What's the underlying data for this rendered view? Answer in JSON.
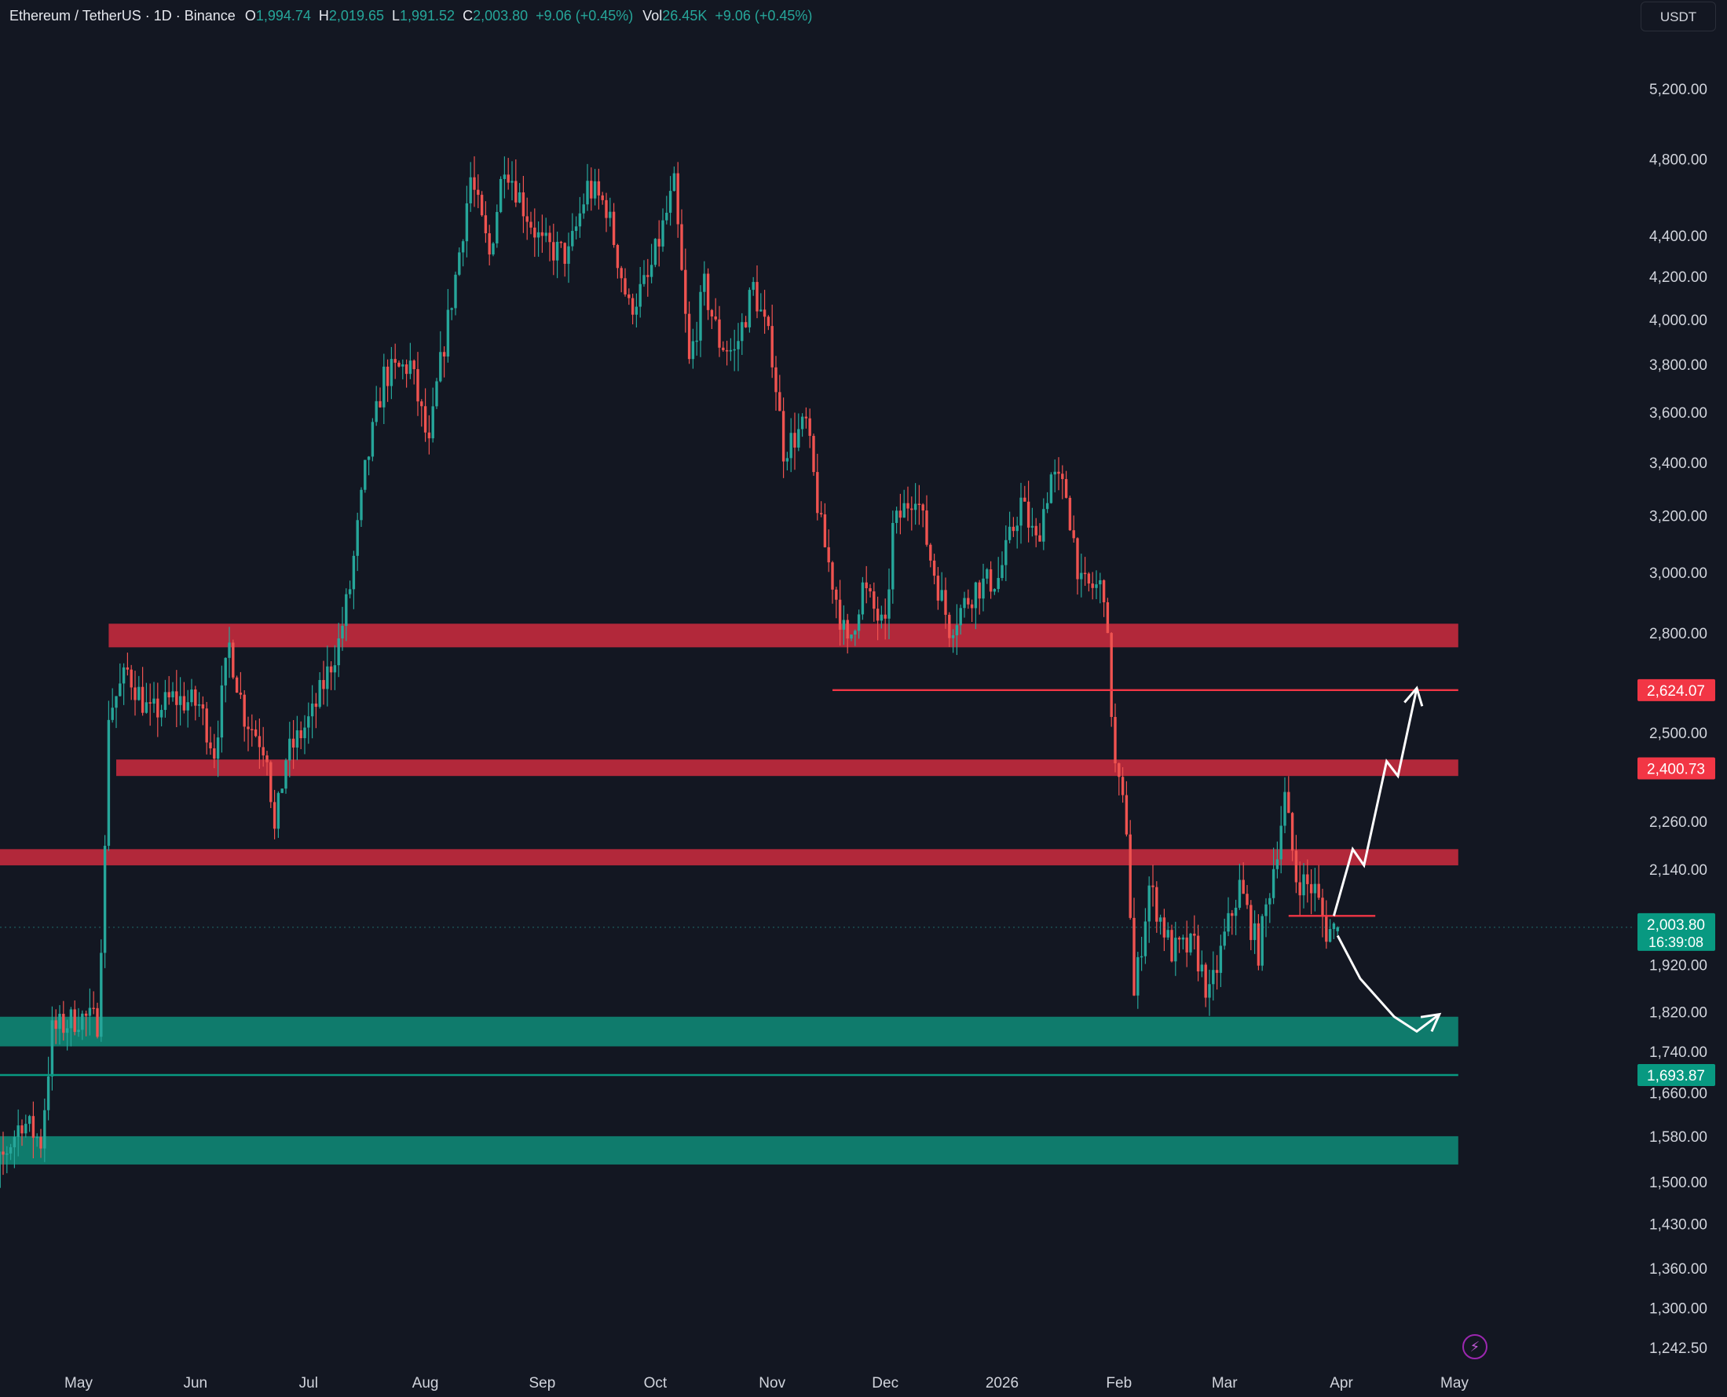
{
  "header": {
    "symbol": "Ethereum / TetherUS · 1D · Binance",
    "open_label": "O",
    "open_value": "1,994.74",
    "high_label": "H",
    "high_value": "2,019.65",
    "low_label": "L",
    "low_value": "1,991.52",
    "close_label": "C",
    "close_value": "2,003.80",
    "change": "+9.06 (+0.45%)",
    "vol_label": "Vol",
    "vol_value": "26.45K",
    "vol_change": "+9.06 (+0.45%)"
  },
  "currency_button": "USDT",
  "colors": {
    "background": "#131722",
    "up": "#26a69a",
    "down": "#ef5350",
    "resistance": "#b2283a",
    "support": "#0f7b6c",
    "arrow": "#ffffff",
    "text": "#d1d4dc"
  },
  "chart_data": {
    "type": "candlestick",
    "title": "Ethereum / TetherUS · 1D · Binance",
    "scale": "log",
    "x_ticks": [
      "May",
      "Jun",
      "Jul",
      "Aug",
      "Sep",
      "Oct",
      "Nov",
      "Dec",
      "2026",
      "Feb",
      "Mar",
      "Apr",
      "May"
    ],
    "y_ticks": [
      "5,200.00",
      "4,800.00",
      "4,400.00",
      "4,200.00",
      "4,000.00",
      "3,800.00",
      "3,600.00",
      "3,400.00",
      "3,200.00",
      "3,000.00",
      "2,800.00",
      "2,500.00",
      "2,260.00",
      "2,140.00",
      "1,920.00",
      "1,820.00",
      "1,740.00",
      "1,660.00",
      "1,580.00",
      "1,500.00",
      "1,430.00",
      "1,360.00",
      "1,300.00",
      "1,242.50"
    ],
    "ylim": [
      1200,
      5600
    ],
    "last_price": {
      "value": "2,003.80",
      "countdown": "16:39:08"
    },
    "price_labels": [
      {
        "value": "2,624.07",
        "color": "#f23645"
      },
      {
        "value": "2,400.73",
        "color": "#f23645"
      },
      {
        "value": "1,693.87",
        "color": "#089981"
      }
    ],
    "zones": [
      {
        "type": "resistance",
        "low": 2755,
        "high": 2830,
        "from": "2025-05-09",
        "to": "2026-05-02"
      },
      {
        "type": "resistance",
        "low": 2380,
        "high": 2425,
        "from": "2025-05-11",
        "to": "2026-05-02"
      },
      {
        "type": "resistance",
        "low": 2150,
        "high": 2190,
        "from": "2025-04-01",
        "to": "2026-05-02"
      },
      {
        "type": "support",
        "low": 1750,
        "high": 1810,
        "from": "2025-04-01",
        "to": "2026-05-02"
      },
      {
        "type": "support",
        "low": 1530,
        "high": 1580,
        "from": "2025-04-01",
        "to": "2026-05-02"
      }
    ],
    "lines": [
      {
        "value": 2624.07,
        "from": "2025-11-17",
        "to": "2026-05-02",
        "color": "#f23645"
      },
      {
        "value": 1693.87,
        "from": "2025-04-01",
        "to": "2026-05-02",
        "color": "#089981"
      },
      {
        "value": 2030,
        "from": "2026-03-18",
        "to": "2026-04-10",
        "color": "#f23645"
      }
    ],
    "projection_arrows": [
      {
        "name": "bullish",
        "points": [
          [
            "2026-03-30",
            2030
          ],
          [
            "2026-04-04",
            2190
          ],
          [
            "2026-04-07",
            2150
          ],
          [
            "2026-04-13",
            2420
          ],
          [
            "2026-04-16",
            2380
          ],
          [
            "2026-04-21",
            2630
          ]
        ]
      },
      {
        "name": "bearish",
        "points": [
          [
            "2026-03-31",
            1985
          ],
          [
            "2026-04-06",
            1890
          ],
          [
            "2026-04-15",
            1810
          ],
          [
            "2026-04-21",
            1780
          ],
          [
            "2026-04-27",
            1815
          ]
        ]
      }
    ],
    "anchors": [
      [
        "2025-04-01",
        1700
      ],
      [
        "2025-04-05",
        1580
      ],
      [
        "2025-04-08",
        1420
      ],
      [
        "2025-04-10",
        1530
      ],
      [
        "2025-04-16",
        1610
      ],
      [
        "2025-04-21",
        1570
      ],
      [
        "2025-04-24",
        1780
      ],
      [
        "2025-05-01",
        1810
      ],
      [
        "2025-05-06",
        1800
      ],
      [
        "2025-05-08",
        2180
      ],
      [
        "2025-05-09",
        2560
      ],
      [
        "2025-05-14",
        2680
      ],
      [
        "2025-05-20",
        2550
      ],
      [
        "2025-05-26",
        2600
      ],
      [
        "2025-06-02",
        2580
      ],
      [
        "2025-06-06",
        2450
      ],
      [
        "2025-06-10",
        2760
      ],
      [
        "2025-06-14",
        2550
      ],
      [
        "2025-06-20",
        2450
      ],
      [
        "2025-06-22",
        2230
      ],
      [
        "2025-06-25",
        2430
      ],
      [
        "2025-07-02",
        2550
      ],
      [
        "2025-07-09",
        2770
      ],
      [
        "2025-07-12",
        2950
      ],
      [
        "2025-07-16",
        3360
      ],
      [
        "2025-07-21",
        3750
      ],
      [
        "2025-07-28",
        3800
      ],
      [
        "2025-08-02",
        3450
      ],
      [
        "2025-08-04",
        3700
      ],
      [
        "2025-08-09",
        4200
      ],
      [
        "2025-08-13",
        4700
      ],
      [
        "2025-08-18",
        4300
      ],
      [
        "2025-08-22",
        4800
      ],
      [
        "2025-08-27",
        4550
      ],
      [
        "2025-09-01",
        4350
      ],
      [
        "2025-09-08",
        4300
      ],
      [
        "2025-09-13",
        4650
      ],
      [
        "2025-09-18",
        4550
      ],
      [
        "2025-09-24",
        4050
      ],
      [
        "2025-09-29",
        4180
      ],
      [
        "2025-10-06",
        4650
      ],
      [
        "2025-10-10",
        3800
      ],
      [
        "2025-10-14",
        4150
      ],
      [
        "2025-10-18",
        3900
      ],
      [
        "2025-10-22",
        3850
      ],
      [
        "2025-10-27",
        4150
      ],
      [
        "2025-11-01",
        3850
      ],
      [
        "2025-11-04",
        3450
      ],
      [
        "2025-11-10",
        3550
      ],
      [
        "2025-11-14",
        3150
      ],
      [
        "2025-11-21",
        2750
      ],
      [
        "2025-11-25",
        2950
      ],
      [
        "2025-12-01",
        2800
      ],
      [
        "2025-12-03",
        3150
      ],
      [
        "2025-12-09",
        3300
      ],
      [
        "2025-12-13",
        3050
      ],
      [
        "2025-12-18",
        2820
      ],
      [
        "2025-12-25",
        2950
      ],
      [
        "2025-12-31",
        2980
      ],
      [
        "2026-01-06",
        3250
      ],
      [
        "2026-01-10",
        3100
      ],
      [
        "2026-01-14",
        3350
      ],
      [
        "2026-01-18",
        3280
      ],
      [
        "2026-01-22",
        2950
      ],
      [
        "2026-01-28",
        2950
      ],
      [
        "2026-01-31",
        2400
      ],
      [
        "2026-02-03",
        2250
      ],
      [
        "2026-02-05",
        1850
      ],
      [
        "2026-02-09",
        2100
      ],
      [
        "2026-02-15",
        1950
      ],
      [
        "2026-02-21",
        1960
      ],
      [
        "2026-02-25",
        1850
      ],
      [
        "2026-03-01",
        1980
      ],
      [
        "2026-03-05",
        2100
      ],
      [
        "2026-03-10",
        1950
      ],
      [
        "2026-03-15",
        2200
      ],
      [
        "2026-03-17",
        2320
      ],
      [
        "2026-03-20",
        2120
      ],
      [
        "2026-03-25",
        2090
      ],
      [
        "2026-03-28",
        1995
      ],
      [
        "2026-03-31",
        2003.8
      ]
    ]
  }
}
